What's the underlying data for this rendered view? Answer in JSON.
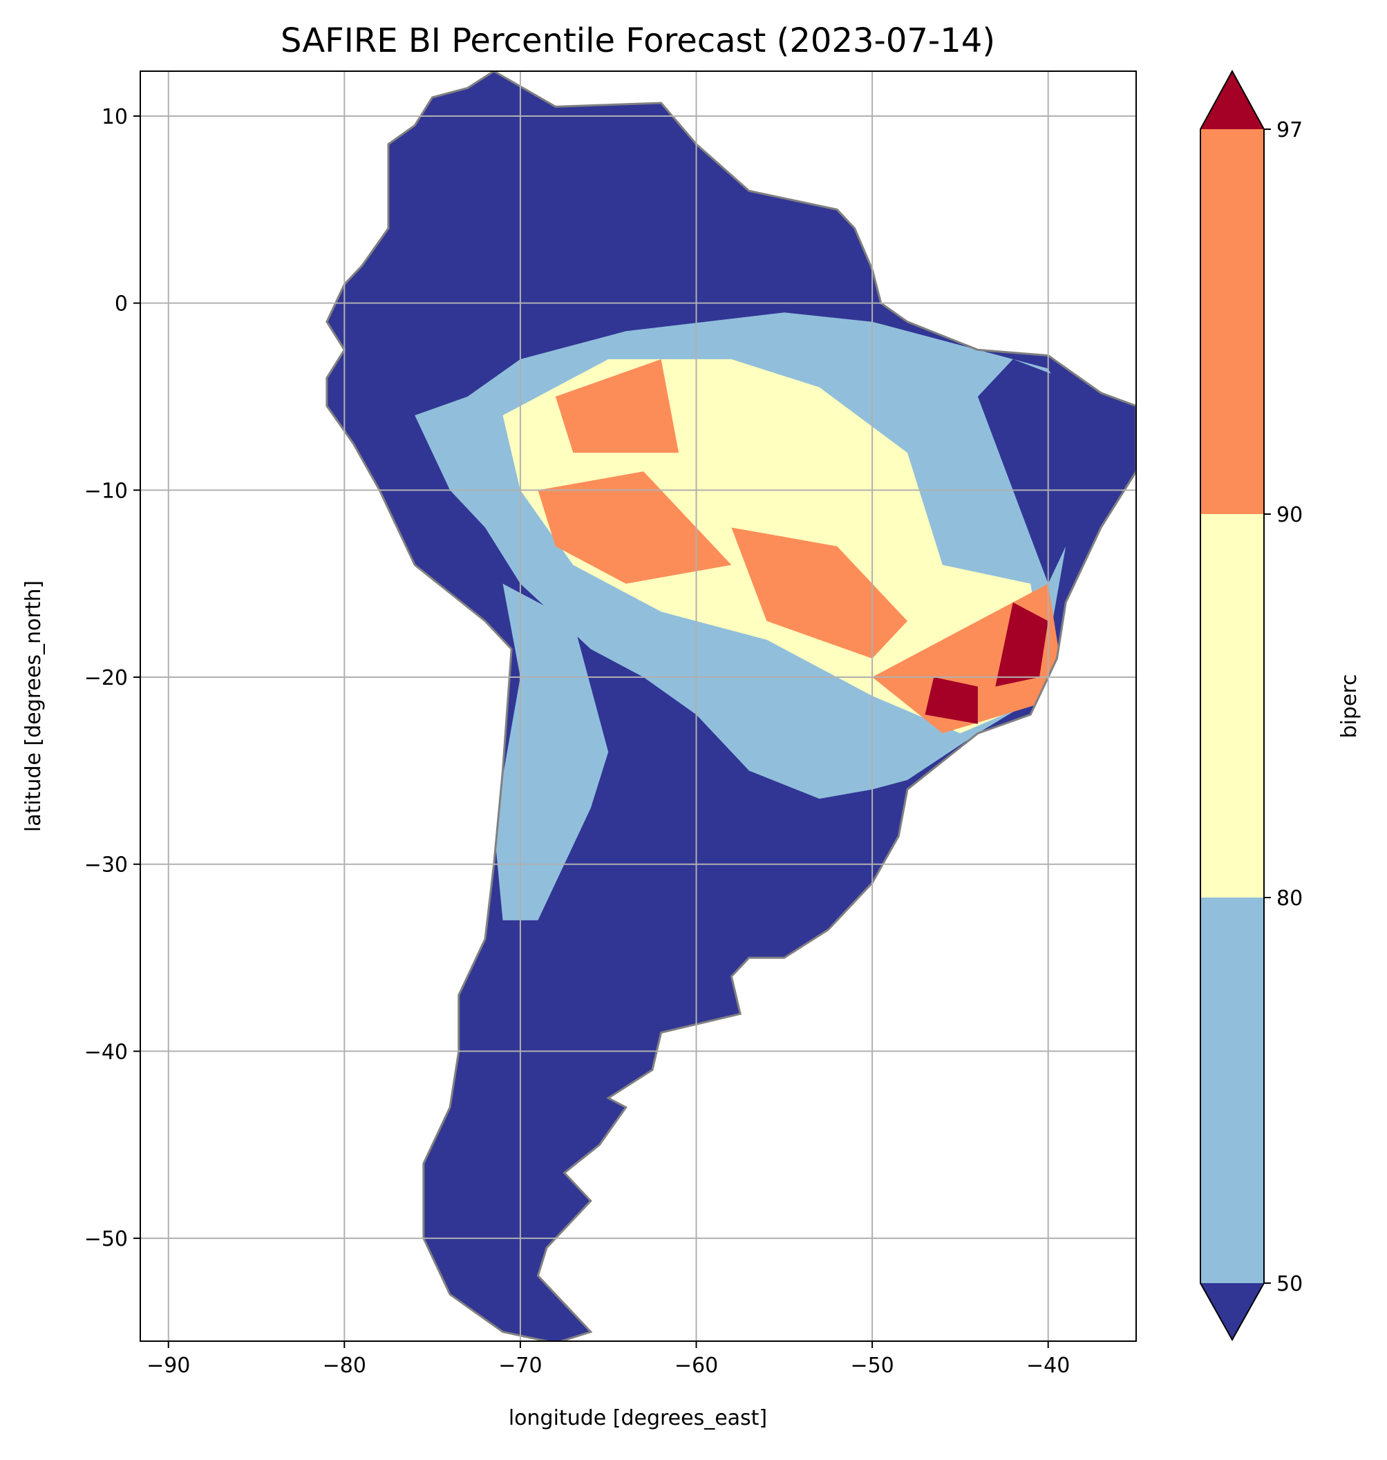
{
  "chart_data": {
    "type": "heatmap",
    "title": "SAFIRE BI Percentile Forecast (2023-07-14)",
    "xlabel": "longitude [degrees_east]",
    "ylabel": "latitude [degrees_north]",
    "xlim": [
      -91.6,
      -35.0
    ],
    "ylim": [
      -55.5,
      12.4
    ],
    "xticks": [
      -90,
      -80,
      -70,
      -60,
      -50,
      -40
    ],
    "yticks": [
      10,
      0,
      -10,
      -20,
      -30,
      -40,
      -50
    ],
    "xtick_labels": [
      "−90",
      "−80",
      "−70",
      "−60",
      "−50",
      "−40"
    ],
    "ytick_labels": [
      "10",
      "0",
      "−10",
      "−20",
      "−30",
      "−40",
      "−50"
    ],
    "grid": true,
    "colorbar": {
      "label": "biperc",
      "levels": [
        50,
        80,
        90,
        97
      ],
      "tick_labels": [
        "50",
        "80",
        "90",
        "97"
      ],
      "extend": "both",
      "colors": {
        "below": "#313695",
        "b50_80": "#91bfdb",
        "b80_90": "#ffffbf",
        "b90_97": "#fc8d59",
        "above": "#a50026"
      }
    },
    "land_outline_color": "#808080",
    "regions": [
      {
        "name": "land-below-50",
        "category": "below",
        "lonlat": [
          [
            -71.5,
            12.4
          ],
          [
            -68,
            10.5
          ],
          [
            -62,
            10.7
          ],
          [
            -60,
            8.5
          ],
          [
            -57,
            6
          ],
          [
            -52,
            5
          ],
          [
            -51,
            4
          ],
          [
            -50,
            1.8
          ],
          [
            -49.5,
            0
          ],
          [
            -48,
            -1
          ],
          [
            -44,
            -2.5
          ],
          [
            -40,
            -2.8
          ],
          [
            -37,
            -4.8
          ],
          [
            -35,
            -5.5
          ],
          [
            -35,
            -9
          ],
          [
            -37,
            -12
          ],
          [
            -39,
            -16
          ],
          [
            -39.5,
            -19
          ],
          [
            -41,
            -22
          ],
          [
            -44,
            -23
          ],
          [
            -48,
            -26
          ],
          [
            -48.5,
            -28.5
          ],
          [
            -50,
            -31
          ],
          [
            -52.5,
            -33.5
          ],
          [
            -55,
            -35
          ],
          [
            -57,
            -35
          ],
          [
            -58,
            -36
          ],
          [
            -57.5,
            -38
          ],
          [
            -62,
            -39
          ],
          [
            -62.5,
            -41
          ],
          [
            -65,
            -42.5
          ],
          [
            -64,
            -43
          ],
          [
            -65.5,
            -45
          ],
          [
            -67.5,
            -46.5
          ],
          [
            -66,
            -48
          ],
          [
            -68.5,
            -50.5
          ],
          [
            -69,
            -52
          ],
          [
            -68,
            -53
          ],
          [
            -66,
            -55
          ],
          [
            -68,
            -55.6
          ],
          [
            -71,
            -55
          ],
          [
            -74,
            -53
          ],
          [
            -75.5,
            -50
          ],
          [
            -75.5,
            -46
          ],
          [
            -74,
            -43
          ],
          [
            -73.5,
            -40
          ],
          [
            -73.5,
            -37
          ],
          [
            -72,
            -34
          ],
          [
            -71.5,
            -30
          ],
          [
            -71,
            -25
          ],
          [
            -70.5,
            -18.5
          ],
          [
            -72,
            -17
          ],
          [
            -76,
            -14
          ],
          [
            -78,
            -10
          ],
          [
            -79.5,
            -7.5
          ],
          [
            -81,
            -5.5
          ],
          [
            -81,
            -4
          ],
          [
            -80,
            -2.5
          ],
          [
            -81,
            -1
          ],
          [
            -80,
            1
          ],
          [
            -79,
            2
          ],
          [
            -77.5,
            4
          ],
          [
            -77.5,
            7
          ],
          [
            -77.5,
            8.5
          ],
          [
            -76,
            9.5
          ],
          [
            -75,
            11
          ],
          [
            -73,
            11.5
          ]
        ]
      },
      {
        "name": "region-50-80",
        "category": "b50_80",
        "lonlat": [
          [
            -73,
            -5
          ],
          [
            -70,
            -3
          ],
          [
            -64,
            -1.5
          ],
          [
            -55,
            -0.5
          ],
          [
            -50,
            -1
          ],
          [
            -44,
            -2.5
          ],
          [
            -40,
            -3.5
          ],
          [
            -38,
            -7
          ],
          [
            -39,
            -13
          ],
          [
            -40.5,
            -21
          ],
          [
            -44,
            -23
          ],
          [
            -48,
            -25.5
          ],
          [
            -50,
            -26
          ],
          [
            -53,
            -26.5
          ],
          [
            -57,
            -25
          ],
          [
            -60,
            -22
          ],
          [
            -63,
            -20
          ],
          [
            -66,
            -18.5
          ],
          [
            -70,
            -15
          ],
          [
            -72,
            -12
          ],
          [
            -74,
            -10
          ],
          [
            -76,
            -6
          ]
        ]
      },
      {
        "name": "andes-50-80",
        "category": "b50_80",
        "lonlat": [
          [
            -71,
            -15
          ],
          [
            -67,
            -17
          ],
          [
            -65,
            -24
          ],
          [
            -66,
            -27
          ],
          [
            -69,
            -33
          ],
          [
            -71,
            -33
          ],
          [
            -71.5,
            -28
          ],
          [
            -70,
            -20
          ]
        ]
      },
      {
        "name": "northeast-below-50",
        "category": "below",
        "lonlat": [
          [
            -42,
            -3
          ],
          [
            -35,
            -5.5
          ],
          [
            -35,
            -9
          ],
          [
            -39,
            -13
          ],
          [
            -40,
            -15
          ],
          [
            -42,
            -10
          ],
          [
            -44,
            -5
          ]
        ]
      },
      {
        "name": "region-80-90",
        "category": "b80_90",
        "lonlat": [
          [
            -71,
            -6
          ],
          [
            -65,
            -3
          ],
          [
            -58,
            -3
          ],
          [
            -53,
            -4.5
          ],
          [
            -48,
            -8
          ],
          [
            -46,
            -14
          ],
          [
            -41,
            -15
          ],
          [
            -40,
            -21
          ],
          [
            -45,
            -23
          ],
          [
            -50,
            -21
          ],
          [
            -56,
            -18
          ],
          [
            -62,
            -16.5
          ],
          [
            -67,
            -14
          ],
          [
            -70,
            -10
          ]
        ]
      },
      {
        "name": "region-90-97-a",
        "category": "b90_97",
        "lonlat": [
          [
            -68,
            -5
          ],
          [
            -62,
            -3
          ],
          [
            -61,
            -8
          ],
          [
            -67,
            -8
          ]
        ]
      },
      {
        "name": "region-90-97-b",
        "category": "b90_97",
        "lonlat": [
          [
            -69,
            -10
          ],
          [
            -63,
            -9
          ],
          [
            -58,
            -14
          ],
          [
            -64,
            -15
          ],
          [
            -68,
            -13
          ]
        ]
      },
      {
        "name": "region-90-97-c",
        "category": "b90_97",
        "lonlat": [
          [
            -58,
            -12
          ],
          [
            -52,
            -13
          ],
          [
            -48,
            -17
          ],
          [
            -50,
            -19
          ],
          [
            -56,
            -17
          ]
        ]
      },
      {
        "name": "region-90-97-d",
        "category": "b90_97",
        "lonlat": [
          [
            -46,
            -18
          ],
          [
            -40,
            -15
          ],
          [
            -39,
            -21
          ],
          [
            -46,
            -23
          ],
          [
            -50,
            -20
          ]
        ]
      },
      {
        "name": "region-above-97-a",
        "category": "above",
        "lonlat": [
          [
            -42,
            -16
          ],
          [
            -40,
            -17
          ],
          [
            -40.5,
            -20
          ],
          [
            -43,
            -20.5
          ]
        ]
      },
      {
        "name": "region-above-97-b",
        "category": "above",
        "lonlat": [
          [
            -46.5,
            -20
          ],
          [
            -44,
            -20.5
          ],
          [
            -44,
            -22.5
          ],
          [
            -47,
            -22
          ]
        ]
      }
    ]
  }
}
